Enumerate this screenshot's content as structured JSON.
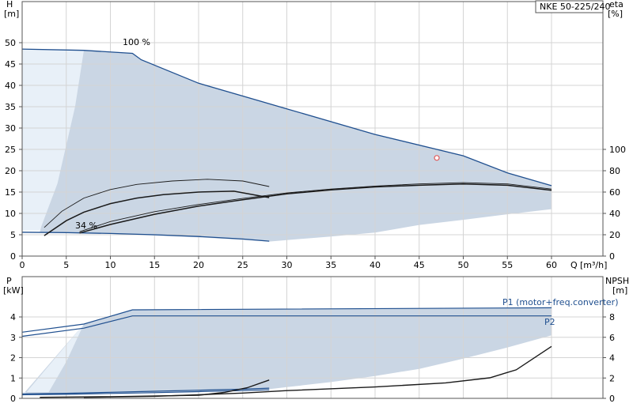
{
  "chart_data": [
    {
      "type": "line",
      "title_box": "NKE 50-225/240",
      "ylabel": "H",
      "yunit": "[m]",
      "y2label": "eta",
      "y2unit": "[%]",
      "xlabel": "Q",
      "xunit": "[m³/h]",
      "xlim": [
        0,
        60
      ],
      "ylim": [
        0,
        50
      ],
      "y2lim": [
        0,
        100
      ],
      "x_ticks": [
        "0",
        "5",
        "10",
        "15",
        "20",
        "25",
        "30",
        "35",
        "40",
        "45",
        "50",
        "55",
        "60"
      ],
      "y_ticks": [
        "0",
        "5",
        "10",
        "15",
        "20",
        "25",
        "30",
        "35",
        "40",
        "45",
        "50"
      ],
      "y2_ticks": [
        "0",
        "20",
        "40",
        "60",
        "80",
        "100"
      ],
      "grid": true,
      "annotations": [
        {
          "text": "100 %",
          "x": 14,
          "y": 49
        },
        {
          "text": "34 %",
          "x": 7,
          "y": 6.5
        }
      ],
      "series": [
        {
          "role": "head-100",
          "x": [
            0,
            7,
            12.5,
            13.5,
            20,
            30,
            40,
            50,
            55,
            60
          ],
          "y": [
            48.5,
            48.2,
            47.5,
            46,
            40.5,
            34.5,
            28.5,
            23.5,
            19.5,
            16.5
          ]
        },
        {
          "role": "head-34",
          "x": [
            0,
            5,
            10,
            15,
            20,
            25,
            28
          ],
          "y": [
            5.6,
            5.5,
            5.3,
            5,
            4.6,
            4,
            3.5
          ]
        },
        {
          "role": "eta-upper-100",
          "x": [
            6.5,
            10,
            15,
            20,
            25,
            30,
            35,
            40,
            45,
            50,
            55,
            60
          ],
          "y": [
            5.7,
            8.1,
            10.4,
            12.1,
            13.5,
            14.8,
            15.7,
            16.4,
            16.9,
            17.2,
            16.9,
            15.7
          ]
        },
        {
          "role": "eta-lower-100",
          "x": [
            6.5,
            10,
            15,
            20,
            25,
            30,
            35,
            40,
            45,
            50,
            55,
            60
          ],
          "y": [
            5.4,
            7.4,
            9.8,
            11.7,
            13.2,
            14.6,
            15.5,
            16.2,
            16.6,
            16.9,
            16.6,
            15.4
          ]
        },
        {
          "role": "eta-upper-34",
          "x": [
            2.5,
            4.5,
            7,
            10,
            13,
            17,
            21,
            25,
            28
          ],
          "y": [
            6.7,
            10.5,
            13.6,
            15.6,
            16.8,
            17.6,
            18.0,
            17.6,
            16.3
          ]
        },
        {
          "role": "eta-lower-34",
          "x": [
            2.5,
            5,
            7,
            10,
            13,
            16,
            20,
            24,
            28
          ],
          "y": [
            4.8,
            8.3,
            10.3,
            12.3,
            13.6,
            14.4,
            15.0,
            15.2,
            13.7
          ]
        },
        {
          "role": "efficiency-point",
          "x": [
            47
          ],
          "y": [
            23
          ]
        }
      ],
      "envelope_upper": {
        "x": [
          7,
          12.5,
          13.5,
          20,
          30,
          40,
          50,
          55,
          60
        ],
        "y": [
          48.2,
          47.5,
          46,
          40.5,
          34.5,
          28.5,
          23.5,
          19.5,
          16.5
        ]
      },
      "envelope_lower": {
        "x": [
          60,
          55,
          50,
          45,
          40,
          35,
          28,
          20,
          10,
          5,
          2
        ],
        "y": [
          11,
          9.8,
          8.5,
          7.3,
          5.5,
          4.6,
          3.4,
          4.4,
          5.2,
          5.5,
          5.6
        ]
      },
      "light_region": {
        "x": [
          0,
          2,
          4,
          6,
          7
        ],
        "y": [
          48.5,
          6,
          17,
          35,
          48.2
        ]
      }
    },
    {
      "type": "line",
      "ylabel": "P",
      "yunit": "[kW]",
      "y2label": "NPSH",
      "y2unit": "[m]",
      "xlim": [
        0,
        60
      ],
      "ylim": [
        0,
        5
      ],
      "y2lim": [
        0,
        10
      ],
      "y_ticks": [
        "0",
        "1",
        "2",
        "3",
        "4"
      ],
      "y2_ticks": [
        "0",
        "2",
        "4",
        "6",
        "8"
      ],
      "grid": true,
      "legend": [
        "P1 (motor+freq.converter)",
        "P2"
      ],
      "series": [
        {
          "name": "P1 (motor+freq.converter)",
          "x": [
            0,
            7,
            12.5,
            60
          ],
          "y": [
            3.25,
            3.65,
            4.35,
            4.45
          ]
        },
        {
          "name": "P2",
          "x": [
            0,
            7,
            12.5,
            60
          ],
          "y": [
            3.05,
            3.45,
            4.05,
            4.05
          ]
        },
        {
          "role": "p1-34",
          "x": [
            0,
            5,
            10,
            15,
            20,
            25,
            28
          ],
          "y": [
            0.22,
            0.25,
            0.3,
            0.35,
            0.4,
            0.45,
            0.5
          ]
        },
        {
          "role": "p2-34",
          "x": [
            0,
            5,
            10,
            15,
            20,
            25,
            28
          ],
          "y": [
            0.18,
            0.2,
            0.24,
            0.28,
            0.33,
            0.38,
            0.42
          ]
        },
        {
          "role": "npsh-100",
          "x": [
            7,
            15,
            20,
            25,
            30,
            40,
            48,
            53,
            56,
            60
          ],
          "y": [
            0.05,
            0.1,
            0.18,
            0.26,
            0.38,
            0.56,
            0.76,
            1.01,
            1.4,
            2.55
          ]
        },
        {
          "role": "npsh-34",
          "x": [
            2,
            10,
            20,
            23,
            25.5,
            28
          ],
          "y": [
            0.05,
            0.08,
            0.15,
            0.3,
            0.52,
            0.9
          ]
        }
      ],
      "envelope_upper": {
        "x": [
          7,
          12.5,
          60
        ],
        "y": [
          3.65,
          4.35,
          4.45
        ]
      },
      "envelope_lower": {
        "x": [
          60,
          55,
          50,
          45,
          40,
          35,
          30,
          28,
          20,
          10,
          5,
          0
        ],
        "y": [
          3.1,
          2.5,
          1.95,
          1.45,
          1.1,
          0.8,
          0.55,
          0.45,
          0.33,
          0.25,
          0.2,
          0.15
        ]
      },
      "light_region": {
        "x": [
          0,
          3,
          5,
          7
        ],
        "y": [
          0.05,
          0.3,
          1.8,
          3.65
        ]
      }
    }
  ],
  "colors": {
    "envelope_fill": "#cad6e4",
    "light_fill": "#e8f0f8",
    "curve_blue": "#1f4f8f",
    "curve_black": "#1a1a1a",
    "marker_red": "#e05a5a"
  }
}
